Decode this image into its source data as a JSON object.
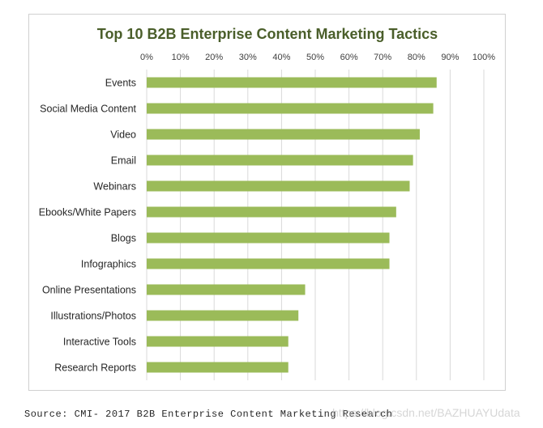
{
  "chart_data": {
    "type": "bar",
    "orientation": "horizontal",
    "title": "Top 10 B2B Enterprise Content Marketing Tactics",
    "xlabel": "",
    "ylabel": "",
    "xlim": [
      0,
      100
    ],
    "x_ticks": [
      "0%",
      "10%",
      "20%",
      "30%",
      "40%",
      "50%",
      "60%",
      "70%",
      "80%",
      "90%",
      "100%"
    ],
    "x_axis_position": "top",
    "grid": "vertical",
    "legend": "none",
    "categories": [
      "Events",
      "Social Media Content",
      "Video",
      "Email",
      "Webinars",
      "Ebooks/White Papers",
      "Blogs",
      "Infographics",
      "Online Presentations",
      "Illustrations/Photos",
      "Interactive Tools",
      "Research Reports"
    ],
    "values": [
      86,
      85,
      81,
      79,
      78,
      74,
      72,
      72,
      47,
      45,
      42,
      42
    ],
    "bar_color": "#9bbb59",
    "title_color": "#4a5e2a"
  },
  "source": "Source: CMI- 2017 B2B Enterprise Content Marketing Research",
  "watermark": "https://blog.csdn.net/BAZHUAYUdata"
}
